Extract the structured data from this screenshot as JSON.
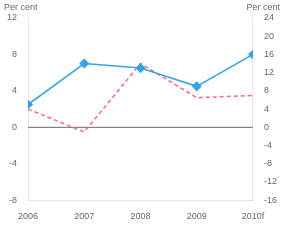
{
  "chart_data": {
    "type": "line",
    "categories": [
      "2006",
      "2007",
      "2008",
      "2009",
      "2010f"
    ],
    "series": [
      {
        "values": [
          2.5,
          7.0,
          6.5,
          4.5,
          8.0
        ],
        "marker": "diamond",
        "line_style": "solid"
      },
      {
        "values": [
          4.0,
          -1.0,
          14.0,
          6.5,
          7.0
        ],
        "axis": "y2",
        "marker": "none",
        "line_style": "dashed"
      }
    ],
    "ylim": [
      -8,
      12
    ],
    "yticks": [
      -8,
      -4,
      0,
      4,
      8,
      12
    ],
    "y2lim": [
      -16,
      24
    ],
    "y2ticks": [
      -16,
      -12,
      -8,
      -4,
      0,
      4,
      8,
      12,
      16,
      20,
      24
    ],
    "ylabel": "Per cent",
    "y2label": "Per cent",
    "grid": false
  }
}
